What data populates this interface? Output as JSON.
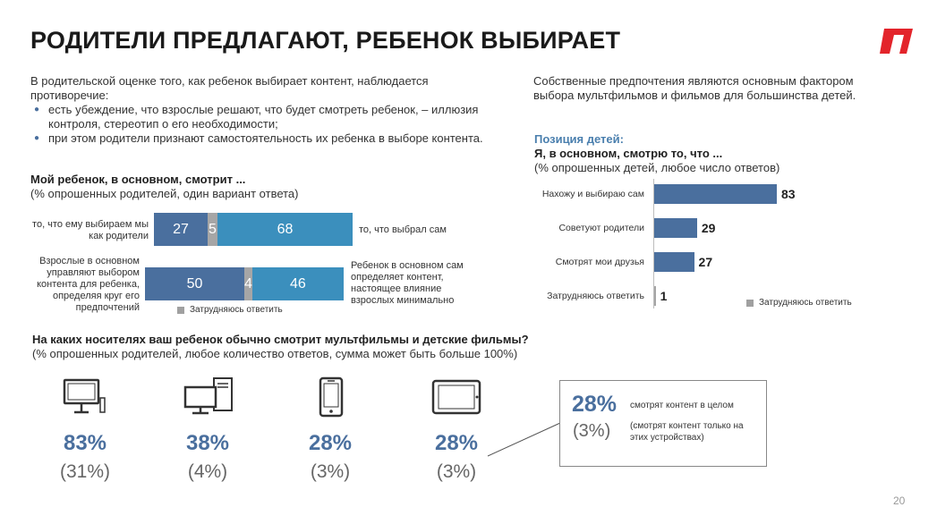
{
  "title": "РОДИТЕЛИ ПРЕДЛАГАЮТ, РЕБЕНОК ВЫБИРАЕТ",
  "intro": {
    "lead": "В родительской оценке того, как ребенок выбирает контент, наблюдается противоречие:",
    "bullets": [
      "есть убеждение, что взрослые решают, что будет смотреть ребенок, – иллюзия контроля, стереотип о его необходимости;",
      "при этом родители признают самостоятельность их ребенка в выборе контента."
    ]
  },
  "right_text": "Собственные предпочтения являются основным фактором выбора мультфильмов и фильмов для большинства детей.",
  "colors": {
    "bar_dark": "#4a6f9e",
    "bar_light": "#3b8fbd",
    "bar_grey": "#a6a6a6",
    "accent": "#4a7fae",
    "logo": "#e3242b"
  },
  "chart_data": [
    {
      "type": "bar",
      "orientation": "horizontal-stacked",
      "title": "Мой ребенок, в основном, смотрит ...",
      "subtitle": "(% опрошенных родителей, один вариант ответа)",
      "rows": [
        {
          "left_label": "то, что ему выбираем мы как родители",
          "right_label": "то, что выбрал сам",
          "values": [
            27,
            5,
            68
          ]
        },
        {
          "left_label": "Взрослые в основном управляют выбором контента для ребенка, определяя круг его предпочтений",
          "right_label": "Ребенок в основном сам определяет контент, настоящее влияние взрослых минимально",
          "values": [
            50,
            4,
            46
          ]
        }
      ],
      "legend": "Затрудняюсь ответить"
    },
    {
      "type": "bar",
      "orientation": "horizontal",
      "label": "Позиция детей:",
      "title": "Я, в основном, смотрю то, что ...",
      "subtitle": "(% опрошенных детей, любое число ответов)",
      "categories": [
        "Нахожу и выбираю сам",
        "Советуют родители",
        "Смотрят мои друзья",
        "Затрудняюсь ответить"
      ],
      "values": [
        83,
        29,
        27,
        1
      ],
      "legend": "Затрудняюсь ответить",
      "xlim": [
        0,
        100
      ]
    }
  ],
  "devices_section": {
    "title": "На каких носителях ваш ребенок обычно смотрит мультфильмы и детские фильмы?",
    "subtitle": "(% опрошенных родителей, любое количество ответов, сумма может быть больше 100%)",
    "devices": [
      {
        "icon": "tv-monitor-icon",
        "pct": "83%",
        "sub": "(31%)"
      },
      {
        "icon": "desktop-computer-icon",
        "pct": "38%",
        "sub": "(4%)"
      },
      {
        "icon": "smartphone-icon",
        "pct": "28%",
        "sub": "(3%)"
      },
      {
        "icon": "tablet-icon",
        "pct": "28%",
        "sub": "(3%)"
      }
    ],
    "callout": {
      "pct": "28%",
      "pct_label": "смотрят контент в целом",
      "sub": "(3%)",
      "sub_label": "(смотрят контент только на этих устройствах)"
    }
  },
  "page_number": "20"
}
